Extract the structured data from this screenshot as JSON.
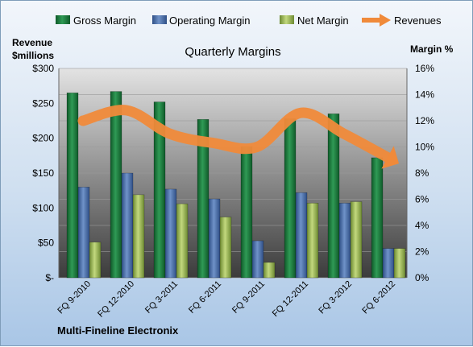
{
  "chart_data": {
    "type": "bar",
    "title": "Quarterly Margins",
    "footer": "Multi-Fineline Electronix",
    "left_axis_title": [
      "Revenue",
      "$millions"
    ],
    "right_axis_title": "Margin %",
    "categories": [
      "FQ 9-2010",
      "FQ 12-2010",
      "FQ 3-2011",
      "FQ 6-2011",
      "FQ 9-2011",
      "FQ 12-2011",
      "FQ 3-2012",
      "FQ 6-2012"
    ],
    "series": [
      {
        "name": "Gross Margin",
        "axis": "left",
        "values": [
          265,
          267,
          252,
          227,
          188,
          228,
          235,
          172
        ]
      },
      {
        "name": "Operating Margin",
        "axis": "left",
        "values": [
          130,
          150,
          127,
          113,
          53,
          122,
          107,
          42
        ]
      },
      {
        "name": "Net Margin",
        "axis": "left",
        "values": [
          51,
          119,
          106,
          87,
          22,
          107,
          109,
          42
        ]
      },
      {
        "name": "Revenues",
        "axis": "right",
        "style": "arrow",
        "values": [
          12,
          12.8,
          11,
          10.3,
          10,
          12.6,
          11,
          9.2
        ]
      }
    ],
    "ylim": [
      0,
      300
    ],
    "y2lim": [
      0,
      16
    ],
    "yticks": [
      "$300",
      "$250",
      "$200",
      "$150",
      "$100",
      "$50",
      "$-"
    ],
    "y2ticks": [
      "16%",
      "14%",
      "12%",
      "10%",
      "8%",
      "6%",
      "4%",
      "2%",
      "0%"
    ],
    "grid": true,
    "legend_position": "top",
    "colors": {
      "Gross Margin": "#1e7b3c",
      "Operating Margin": "#4a6fab",
      "Net Margin": "#9bb65a",
      "Revenues": "#f08a3a"
    }
  }
}
